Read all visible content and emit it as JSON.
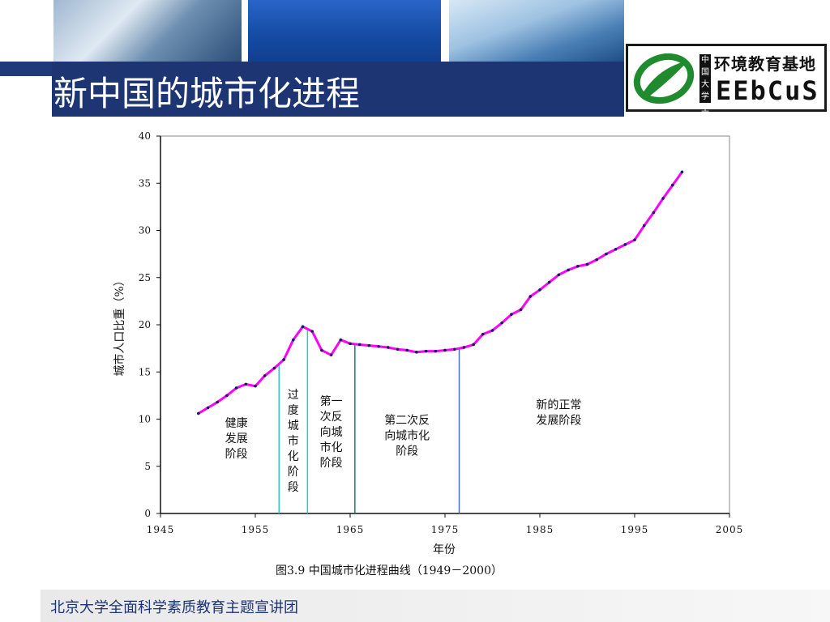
{
  "page": {
    "title": "新中国的城市化进程",
    "footer": "北京大学全面科学素质教育主题宣讲团",
    "caption": "图3.9 中国城市化进程曲线（1949－2000）"
  },
  "logo": {
    "name": "环境教育基地",
    "tag": "中国大学生",
    "brand": "EEbCuS"
  },
  "colors": {
    "title_bar": "#1d3572",
    "line": "#ff00ff",
    "marker": "#1a1a5a",
    "divider_teal": "#2fc8c8",
    "divider_green": "#1f7a6a",
    "divider_blue": "#4a6fb5"
  },
  "chart_data": {
    "type": "line",
    "title": "",
    "xlabel": "年份",
    "ylabel": "城市人口比重（%）",
    "xlim": [
      1945,
      2005
    ],
    "ylim": [
      0,
      40
    ],
    "xticks": [
      1945,
      1955,
      1965,
      1975,
      1985,
      1995,
      2005
    ],
    "yticks": [
      0,
      5,
      10,
      15,
      20,
      25,
      30,
      35,
      40
    ],
    "grid": false,
    "series": [
      {
        "x": [
          1949,
          1950,
          1951,
          1952,
          1953,
          1954,
          1955,
          1956,
          1957,
          1958,
          1959,
          1960,
          1961,
          1962,
          1963,
          1964,
          1965,
          1966,
          1967,
          1968,
          1969,
          1970,
          1971,
          1972,
          1973,
          1974,
          1975,
          1976,
          1977,
          1978,
          1979,
          1980,
          1981,
          1982,
          1983,
          1984,
          1985,
          1986,
          1987,
          1988,
          1989,
          1990,
          1991,
          1992,
          1993,
          1994,
          1995,
          1996,
          1997,
          1998,
          1999,
          2000
        ],
        "values": [
          10.6,
          11.2,
          11.8,
          12.5,
          13.3,
          13.7,
          13.5,
          14.6,
          15.4,
          16.3,
          18.4,
          19.8,
          19.3,
          17.3,
          16.8,
          18.4,
          18.0,
          17.9,
          17.8,
          17.7,
          17.6,
          17.4,
          17.3,
          17.1,
          17.2,
          17.2,
          17.3,
          17.4,
          17.6,
          17.9,
          19.0,
          19.4,
          20.2,
          21.1,
          21.6,
          23.0,
          23.7,
          24.5,
          25.3,
          25.8,
          26.2,
          26.4,
          26.9,
          27.5,
          28.0,
          28.5,
          29.0,
          30.5,
          31.9,
          33.4,
          34.8,
          36.2
        ]
      }
    ],
    "dividers": [
      {
        "x": 1957.5,
        "color": "#2fc8c8"
      },
      {
        "x": 1960.5,
        "color": "#2fc8c8"
      },
      {
        "x": 1965.5,
        "color": "#1f7a6a"
      },
      {
        "x": 1976.5,
        "color": "#4a6fb5"
      }
    ],
    "annotations": [
      {
        "lines": [
          "健康",
          "发展",
          "阶段"
        ],
        "x": 1953,
        "y": 9.2
      },
      {
        "lines": [
          "过",
          "度",
          "城",
          "市",
          "化",
          "阶",
          "段"
        ],
        "x": 1959,
        "y": 12.2
      },
      {
        "lines": [
          "第一",
          "次反",
          "向城",
          "市化",
          "阶段"
        ],
        "x": 1963,
        "y": 11.5
      },
      {
        "lines": [
          "第二次反",
          "向城市化",
          "阶段"
        ],
        "x": 1971,
        "y": 9.5
      },
      {
        "lines": [
          "新的正常",
          "发展阶段"
        ],
        "x": 1987,
        "y": 11.1
      }
    ]
  }
}
